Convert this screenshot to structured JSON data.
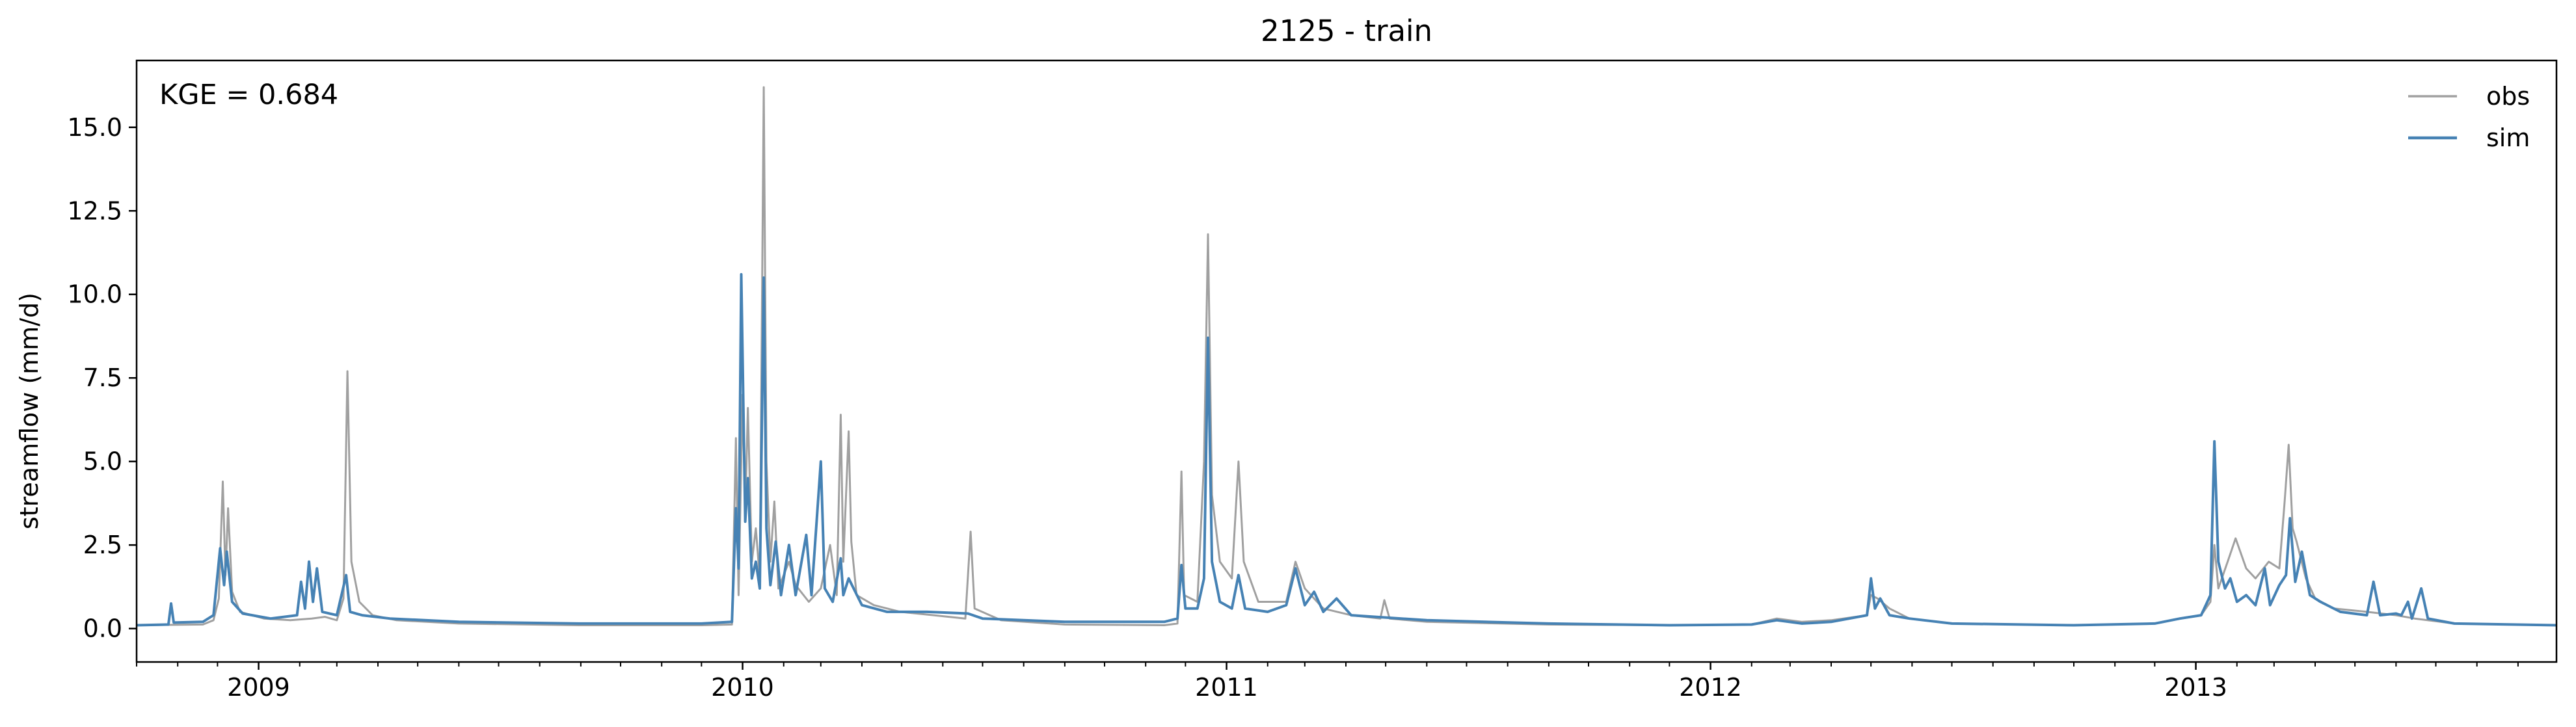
{
  "chart_data": {
    "type": "line",
    "title": "2125 - train",
    "xlabel": "",
    "ylabel": "streamflow (mm/d)",
    "annotation": "KGE = 0.684",
    "xlim": [
      "2008-10-01",
      "2013-09-30"
    ],
    "ylim": [
      -1.0,
      17.0
    ],
    "grid": false,
    "legend_position": "top-right",
    "x_ticks": [
      "2009-01-01",
      "2010-01-01",
      "2011-01-01",
      "2012-01-01",
      "2013-01-01"
    ],
    "x_tick_labels": [
      "2009",
      "2010",
      "2011",
      "2012",
      "2013"
    ],
    "y_ticks": [
      0.0,
      2.5,
      5.0,
      7.5,
      10.0,
      12.5,
      15.0
    ],
    "y_tick_labels": [
      "0.0",
      "2.5",
      "5.0",
      "7.5",
      "10.0",
      "12.5",
      "15.0"
    ],
    "series": [
      {
        "name": "obs",
        "color": "#a0a0a0",
        "points": [
          [
            "2008-10-01",
            0.1
          ],
          [
            "2008-11-20",
            0.12
          ],
          [
            "2008-11-28",
            0.25
          ],
          [
            "2008-12-02",
            0.9
          ],
          [
            "2008-12-05",
            4.4
          ],
          [
            "2008-12-07",
            1.6
          ],
          [
            "2008-12-09",
            3.6
          ],
          [
            "2008-12-12",
            1.1
          ],
          [
            "2008-12-18",
            0.5
          ],
          [
            "2009-01-05",
            0.3
          ],
          [
            "2009-01-25",
            0.25
          ],
          [
            "2009-02-10",
            0.3
          ],
          [
            "2009-02-20",
            0.35
          ],
          [
            "2009-03-01",
            0.25
          ],
          [
            "2009-03-06",
            0.9
          ],
          [
            "2009-03-09",
            7.7
          ],
          [
            "2009-03-12",
            2.0
          ],
          [
            "2009-03-18",
            0.8
          ],
          [
            "2009-03-28",
            0.4
          ],
          [
            "2009-04-15",
            0.25
          ],
          [
            "2009-06-01",
            0.15
          ],
          [
            "2009-09-01",
            0.1
          ],
          [
            "2009-12-01",
            0.1
          ],
          [
            "2009-12-24",
            0.12
          ],
          [
            "2009-12-27",
            5.7
          ],
          [
            "2009-12-29",
            1.0
          ],
          [
            "2010-01-01",
            7.0
          ],
          [
            "2010-01-03",
            3.5
          ],
          [
            "2010-01-05",
            6.6
          ],
          [
            "2010-01-08",
            2.0
          ],
          [
            "2010-01-11",
            3.0
          ],
          [
            "2010-01-14",
            1.5
          ],
          [
            "2010-01-17",
            16.2
          ],
          [
            "2010-01-19",
            5.0
          ],
          [
            "2010-01-22",
            2.0
          ],
          [
            "2010-01-25",
            3.8
          ],
          [
            "2010-01-28",
            1.2
          ],
          [
            "2010-02-05",
            2.0
          ],
          [
            "2010-02-10",
            1.3
          ],
          [
            "2010-02-20",
            0.8
          ],
          [
            "2010-03-01",
            1.2
          ],
          [
            "2010-03-08",
            2.5
          ],
          [
            "2010-03-13",
            1.0
          ],
          [
            "2010-03-16",
            6.4
          ],
          [
            "2010-03-18",
            2.0
          ],
          [
            "2010-03-22",
            5.9
          ],
          [
            "2010-03-24",
            2.6
          ],
          [
            "2010-03-28",
            1.0
          ],
          [
            "2010-04-10",
            0.7
          ],
          [
            "2010-04-30",
            0.5
          ],
          [
            "2010-05-25",
            0.4
          ],
          [
            "2010-06-18",
            0.3
          ],
          [
            "2010-06-22",
            2.9
          ],
          [
            "2010-06-25",
            0.6
          ],
          [
            "2010-07-15",
            0.25
          ],
          [
            "2010-09-01",
            0.12
          ],
          [
            "2010-11-15",
            0.1
          ],
          [
            "2010-11-25",
            0.15
          ],
          [
            "2010-11-28",
            4.7
          ],
          [
            "2010-11-30",
            1.0
          ],
          [
            "2010-12-10",
            0.8
          ],
          [
            "2010-12-15",
            5.0
          ],
          [
            "2010-12-18",
            11.8
          ],
          [
            "2010-12-21",
            4.0
          ],
          [
            "2010-12-27",
            2.0
          ],
          [
            "2011-01-05",
            1.5
          ],
          [
            "2011-01-10",
            5.0
          ],
          [
            "2011-01-14",
            2.0
          ],
          [
            "2011-01-25",
            0.8
          ],
          [
            "2011-02-15",
            0.8
          ],
          [
            "2011-02-22",
            2.0
          ],
          [
            "2011-03-01",
            1.2
          ],
          [
            "2011-03-15",
            0.6
          ],
          [
            "2011-04-05",
            0.4
          ],
          [
            "2011-04-27",
            0.3
          ],
          [
            "2011-04-30",
            0.85
          ],
          [
            "2011-05-04",
            0.3
          ],
          [
            "2011-06-01",
            0.2
          ],
          [
            "2011-09-01",
            0.12
          ],
          [
            "2011-12-01",
            0.1
          ],
          [
            "2012-02-01",
            0.12
          ],
          [
            "2012-02-20",
            0.3
          ],
          [
            "2012-03-10",
            0.2
          ],
          [
            "2012-04-01",
            0.25
          ],
          [
            "2012-04-28",
            0.4
          ],
          [
            "2012-05-01",
            1.0
          ],
          [
            "2012-05-06",
            0.9
          ],
          [
            "2012-05-15",
            0.6
          ],
          [
            "2012-05-30",
            0.3
          ],
          [
            "2012-07-01",
            0.15
          ],
          [
            "2012-10-01",
            0.1
          ],
          [
            "2012-12-01",
            0.15
          ],
          [
            "2012-12-20",
            0.3
          ],
          [
            "2013-01-05",
            0.4
          ],
          [
            "2013-01-12",
            0.8
          ],
          [
            "2013-01-15",
            2.5
          ],
          [
            "2013-01-18",
            1.2
          ],
          [
            "2013-01-25",
            2.0
          ],
          [
            "2013-01-31",
            2.7
          ],
          [
            "2013-02-08",
            1.8
          ],
          [
            "2013-02-15",
            1.5
          ],
          [
            "2013-02-25",
            2.0
          ],
          [
            "2013-03-05",
            1.8
          ],
          [
            "2013-03-09",
            3.8
          ],
          [
            "2013-03-12",
            5.5
          ],
          [
            "2013-03-15",
            3.0
          ],
          [
            "2013-03-18",
            2.6
          ],
          [
            "2013-03-25",
            1.5
          ],
          [
            "2013-04-01",
            0.9
          ],
          [
            "2013-04-15",
            0.6
          ],
          [
            "2013-05-10",
            0.5
          ],
          [
            "2013-06-01",
            0.4
          ],
          [
            "2013-06-15",
            0.3
          ],
          [
            "2013-07-15",
            0.15
          ],
          [
            "2013-09-30",
            0.1
          ]
        ]
      },
      {
        "name": "sim",
        "color": "#4682b4",
        "points": [
          [
            "2008-10-01",
            0.1
          ],
          [
            "2008-10-25",
            0.12
          ],
          [
            "2008-10-27",
            0.75
          ],
          [
            "2008-10-29",
            0.18
          ],
          [
            "2008-11-20",
            0.2
          ],
          [
            "2008-11-28",
            0.4
          ],
          [
            "2008-12-03",
            2.4
          ],
          [
            "2008-12-06",
            1.3
          ],
          [
            "2008-12-08",
            2.3
          ],
          [
            "2008-12-12",
            0.8
          ],
          [
            "2008-12-20",
            0.45
          ],
          [
            "2009-01-10",
            0.3
          ],
          [
            "2009-01-30",
            0.4
          ],
          [
            "2009-02-02",
            1.4
          ],
          [
            "2009-02-05",
            0.6
          ],
          [
            "2009-02-08",
            2.0
          ],
          [
            "2009-02-11",
            0.8
          ],
          [
            "2009-02-14",
            1.8
          ],
          [
            "2009-02-18",
            0.5
          ],
          [
            "2009-03-01",
            0.4
          ],
          [
            "2009-03-08",
            1.6
          ],
          [
            "2009-03-11",
            0.5
          ],
          [
            "2009-03-20",
            0.4
          ],
          [
            "2009-04-10",
            0.3
          ],
          [
            "2009-06-01",
            0.2
          ],
          [
            "2009-09-01",
            0.15
          ],
          [
            "2009-12-01",
            0.15
          ],
          [
            "2009-12-24",
            0.2
          ],
          [
            "2009-12-27",
            3.6
          ],
          [
            "2009-12-29",
            1.8
          ],
          [
            "2009-12-31",
            10.6
          ],
          [
            "2010-01-03",
            3.2
          ],
          [
            "2010-01-05",
            4.5
          ],
          [
            "2010-01-08",
            1.5
          ],
          [
            "2010-01-11",
            2.0
          ],
          [
            "2010-01-14",
            1.2
          ],
          [
            "2010-01-17",
            10.5
          ],
          [
            "2010-01-19",
            3.0
          ],
          [
            "2010-01-22",
            1.3
          ],
          [
            "2010-01-26",
            2.6
          ],
          [
            "2010-01-30",
            1.0
          ],
          [
            "2010-02-05",
            2.5
          ],
          [
            "2010-02-10",
            1.0
          ],
          [
            "2010-02-18",
            2.8
          ],
          [
            "2010-02-22",
            1.0
          ],
          [
            "2010-03-01",
            5.0
          ],
          [
            "2010-03-04",
            1.2
          ],
          [
            "2010-03-10",
            0.8
          ],
          [
            "2010-03-16",
            2.1
          ],
          [
            "2010-03-18",
            1.0
          ],
          [
            "2010-03-22",
            1.5
          ],
          [
            "2010-04-01",
            0.7
          ],
          [
            "2010-04-20",
            0.5
          ],
          [
            "2010-05-20",
            0.5
          ],
          [
            "2010-06-20",
            0.45
          ],
          [
            "2010-07-01",
            0.3
          ],
          [
            "2010-09-01",
            0.2
          ],
          [
            "2010-11-15",
            0.2
          ],
          [
            "2010-11-25",
            0.3
          ],
          [
            "2010-11-28",
            1.9
          ],
          [
            "2010-12-01",
            0.6
          ],
          [
            "2010-12-10",
            0.6
          ],
          [
            "2010-12-15",
            1.5
          ],
          [
            "2010-12-18",
            8.7
          ],
          [
            "2010-12-21",
            2.0
          ],
          [
            "2010-12-27",
            0.8
          ],
          [
            "2011-01-05",
            0.6
          ],
          [
            "2011-01-10",
            1.6
          ],
          [
            "2011-01-15",
            0.6
          ],
          [
            "2011-02-01",
            0.5
          ],
          [
            "2011-02-15",
            0.7
          ],
          [
            "2011-02-22",
            1.8
          ],
          [
            "2011-03-01",
            0.7
          ],
          [
            "2011-03-08",
            1.1
          ],
          [
            "2011-03-15",
            0.5
          ],
          [
            "2011-03-25",
            0.9
          ],
          [
            "2011-04-05",
            0.4
          ],
          [
            "2011-06-01",
            0.25
          ],
          [
            "2011-09-01",
            0.15
          ],
          [
            "2011-12-01",
            0.1
          ],
          [
            "2012-02-01",
            0.12
          ],
          [
            "2012-02-20",
            0.25
          ],
          [
            "2012-03-10",
            0.15
          ],
          [
            "2012-04-01",
            0.2
          ],
          [
            "2012-04-28",
            0.4
          ],
          [
            "2012-05-01",
            1.5
          ],
          [
            "2012-05-04",
            0.6
          ],
          [
            "2012-05-08",
            0.9
          ],
          [
            "2012-05-15",
            0.4
          ],
          [
            "2012-05-30",
            0.3
          ],
          [
            "2012-07-01",
            0.15
          ],
          [
            "2012-10-01",
            0.1
          ],
          [
            "2012-12-01",
            0.15
          ],
          [
            "2012-12-20",
            0.3
          ],
          [
            "2013-01-05",
            0.4
          ],
          [
            "2013-01-12",
            1.0
          ],
          [
            "2013-01-15",
            5.6
          ],
          [
            "2013-01-18",
            2.0
          ],
          [
            "2013-01-23",
            1.2
          ],
          [
            "2013-01-27",
            1.5
          ],
          [
            "2013-02-01",
            0.8
          ],
          [
            "2013-02-08",
            1.0
          ],
          [
            "2013-02-15",
            0.7
          ],
          [
            "2013-02-22",
            1.8
          ],
          [
            "2013-02-26",
            0.7
          ],
          [
            "2013-03-05",
            1.3
          ],
          [
            "2013-03-10",
            1.6
          ],
          [
            "2013-03-13",
            3.3
          ],
          [
            "2013-03-17",
            1.4
          ],
          [
            "2013-03-22",
            2.3
          ],
          [
            "2013-03-28",
            1.0
          ],
          [
            "2013-04-05",
            0.8
          ],
          [
            "2013-04-20",
            0.5
          ],
          [
            "2013-05-10",
            0.4
          ],
          [
            "2013-05-15",
            1.4
          ],
          [
            "2013-05-20",
            0.4
          ],
          [
            "2013-06-01",
            0.45
          ],
          [
            "2013-06-05",
            0.4
          ],
          [
            "2013-06-10",
            0.8
          ],
          [
            "2013-06-13",
            0.3
          ],
          [
            "2013-06-20",
            1.2
          ],
          [
            "2013-06-25",
            0.3
          ],
          [
            "2013-07-15",
            0.15
          ],
          [
            "2013-09-30",
            0.1
          ]
        ]
      }
    ]
  }
}
